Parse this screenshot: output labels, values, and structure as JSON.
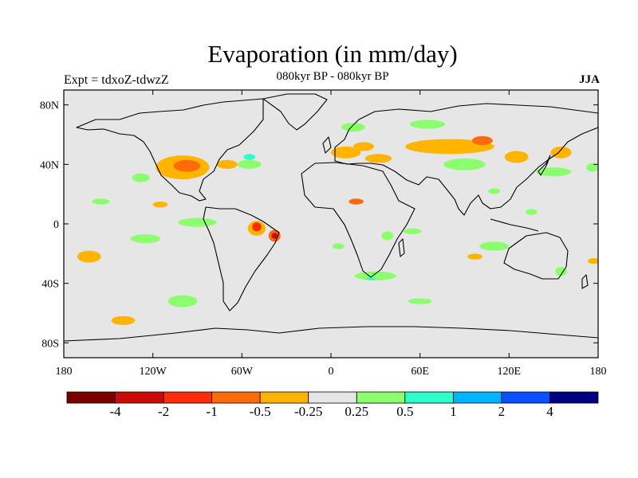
{
  "header": {
    "title": "Evaporation (in mm/day)",
    "subtitle": "080kyr BP - 080kyr BP",
    "left_label": "Expt = tdxoZ-tdwzZ",
    "right_label": "JJA"
  },
  "map": {
    "projection": "cylindrical-equidistant",
    "lon_range": [
      -180,
      180
    ],
    "lat_range": [
      -90,
      90
    ],
    "ocean_color": "#e6e6e6",
    "coastline_color": "#000000",
    "x_ticks": [
      {
        "lon": -180,
        "label": "180"
      },
      {
        "lon": -120,
        "label": "120W"
      },
      {
        "lon": -60,
        "label": "60W"
      },
      {
        "lon": 0,
        "label": "0"
      },
      {
        "lon": 60,
        "label": "60E"
      },
      {
        "lon": 120,
        "label": "120E"
      },
      {
        "lon": 180,
        "label": "180"
      }
    ],
    "y_ticks": [
      {
        "lat": 80,
        "label": "80N"
      },
      {
        "lat": 40,
        "label": "40N"
      },
      {
        "lat": 0,
        "label": "0"
      },
      {
        "lat": -40,
        "label": "40S"
      },
      {
        "lat": -80,
        "label": "80S"
      }
    ]
  },
  "colorbar": {
    "colors": [
      "#7a0000",
      "#cc0a0a",
      "#ff2b0a",
      "#ff6a0a",
      "#ffb400",
      "#e6e6e6",
      "#8cff6e",
      "#2dffcc",
      "#00b4ff",
      "#0a50ff",
      "#000080"
    ],
    "labels": [
      "-4",
      "-2",
      "-1",
      "-0.5",
      "-0.25",
      "0.25",
      "0.5",
      "1",
      "2",
      "4"
    ]
  },
  "anomalies": [
    {
      "lon": -100,
      "lat": 38,
      "rlon": 18,
      "rlat": 8,
      "color": "#ffb400"
    },
    {
      "lon": -97,
      "lat": 39,
      "rlon": 9,
      "rlat": 4,
      "color": "#ff6a0a"
    },
    {
      "lon": -70,
      "lat": 40,
      "rlon": 7,
      "rlat": 3,
      "color": "#ffb400"
    },
    {
      "lon": -55,
      "lat": 40,
      "rlon": 8,
      "rlat": 3,
      "color": "#8cff6e"
    },
    {
      "lon": -128,
      "lat": 31,
      "rlon": 6,
      "rlat": 3,
      "color": "#8cff6e"
    },
    {
      "lon": -50,
      "lat": -3,
      "rlon": 6,
      "rlat": 5,
      "color": "#ffb400"
    },
    {
      "lon": -50,
      "lat": -2,
      "rlon": 3,
      "rlat": 3,
      "color": "#ff2b0a"
    },
    {
      "lon": -38,
      "lat": -8,
      "rlon": 4,
      "rlat": 4,
      "color": "#ff6a0a"
    },
    {
      "lon": -38,
      "lat": -8,
      "rlon": 2,
      "rlat": 2,
      "color": "#cc0a0a"
    },
    {
      "lon": -125,
      "lat": -10,
      "rlon": 10,
      "rlat": 3,
      "color": "#8cff6e"
    },
    {
      "lon": -90,
      "lat": 1,
      "rlon": 13,
      "rlat": 3,
      "color": "#8cff6e"
    },
    {
      "lon": -163,
      "lat": -22,
      "rlon": 8,
      "rlat": 4,
      "color": "#ffb400"
    },
    {
      "lon": -155,
      "lat": 15,
      "rlon": 6,
      "rlat": 2,
      "color": "#8cff6e"
    },
    {
      "lon": -100,
      "lat": -52,
      "rlon": 10,
      "rlat": 4,
      "color": "#8cff6e"
    },
    {
      "lon": -140,
      "lat": -65,
      "rlon": 8,
      "rlat": 3,
      "color": "#ffb400"
    },
    {
      "lon": 10,
      "lat": 48,
      "rlon": 10,
      "rlat": 4,
      "color": "#ffb400"
    },
    {
      "lon": 22,
      "lat": 52,
      "rlon": 7,
      "rlat": 3,
      "color": "#ffb400"
    },
    {
      "lon": 32,
      "lat": 44,
      "rlon": 9,
      "rlat": 3,
      "color": "#ffb400"
    },
    {
      "lon": 80,
      "lat": 52,
      "rlon": 30,
      "rlat": 5,
      "color": "#ffb400"
    },
    {
      "lon": 102,
      "lat": 56,
      "rlon": 7,
      "rlat": 3,
      "color": "#ff6a0a"
    },
    {
      "lon": 65,
      "lat": 67,
      "rlon": 12,
      "rlat": 3,
      "color": "#8cff6e"
    },
    {
      "lon": 15,
      "lat": 65,
      "rlon": 8,
      "rlat": 3,
      "color": "#8cff6e"
    },
    {
      "lon": 90,
      "lat": 40,
      "rlon": 14,
      "rlat": 4,
      "color": "#8cff6e"
    },
    {
      "lon": 125,
      "lat": 45,
      "rlon": 8,
      "rlat": 4,
      "color": "#ffb400"
    },
    {
      "lon": 155,
      "lat": 48,
      "rlon": 7,
      "rlat": 4,
      "color": "#ffb400"
    },
    {
      "lon": 150,
      "lat": 35,
      "rlon": 12,
      "rlat": 3,
      "color": "#8cff6e"
    },
    {
      "lon": 176,
      "lat": 38,
      "rlon": 4,
      "rlat": 3,
      "color": "#8cff6e"
    },
    {
      "lon": 17,
      "lat": 15,
      "rlon": 5,
      "rlat": 2,
      "color": "#ff6a0a"
    },
    {
      "lon": 30,
      "lat": -35,
      "rlon": 14,
      "rlat": 3,
      "color": "#8cff6e"
    },
    {
      "lon": 27,
      "lat": -37,
      "rlon": 3,
      "rlat": 1,
      "color": "#2dffcc"
    },
    {
      "lon": 38,
      "lat": -8,
      "rlon": 4,
      "rlat": 3,
      "color": "#8cff6e"
    },
    {
      "lon": 5,
      "lat": -15,
      "rlon": 4,
      "rlat": 2,
      "color": "#8cff6e"
    },
    {
      "lon": 55,
      "lat": -5,
      "rlon": 6,
      "rlat": 2,
      "color": "#8cff6e"
    },
    {
      "lon": 110,
      "lat": -15,
      "rlon": 10,
      "rlat": 3,
      "color": "#8cff6e"
    },
    {
      "lon": 97,
      "lat": -22,
      "rlon": 5,
      "rlat": 2,
      "color": "#ffb400"
    },
    {
      "lon": 155,
      "lat": -32,
      "rlon": 4,
      "rlat": 3,
      "color": "#8cff6e"
    },
    {
      "lon": 177,
      "lat": -25,
      "rlon": 4,
      "rlat": 2,
      "color": "#ffb400"
    },
    {
      "lon": 60,
      "lat": -52,
      "rlon": 8,
      "rlat": 2,
      "color": "#8cff6e"
    },
    {
      "lon": -115,
      "lat": 13,
      "rlon": 5,
      "rlat": 2,
      "color": "#ffb400"
    },
    {
      "lon": -55,
      "lat": 45,
      "rlon": 4,
      "rlat": 2,
      "color": "#2dffcc"
    },
    {
      "lon": 110,
      "lat": 22,
      "rlon": 4,
      "rlat": 2,
      "color": "#8cff6e"
    },
    {
      "lon": 135,
      "lat": 8,
      "rlon": 4,
      "rlat": 2,
      "color": "#8cff6e"
    }
  ]
}
